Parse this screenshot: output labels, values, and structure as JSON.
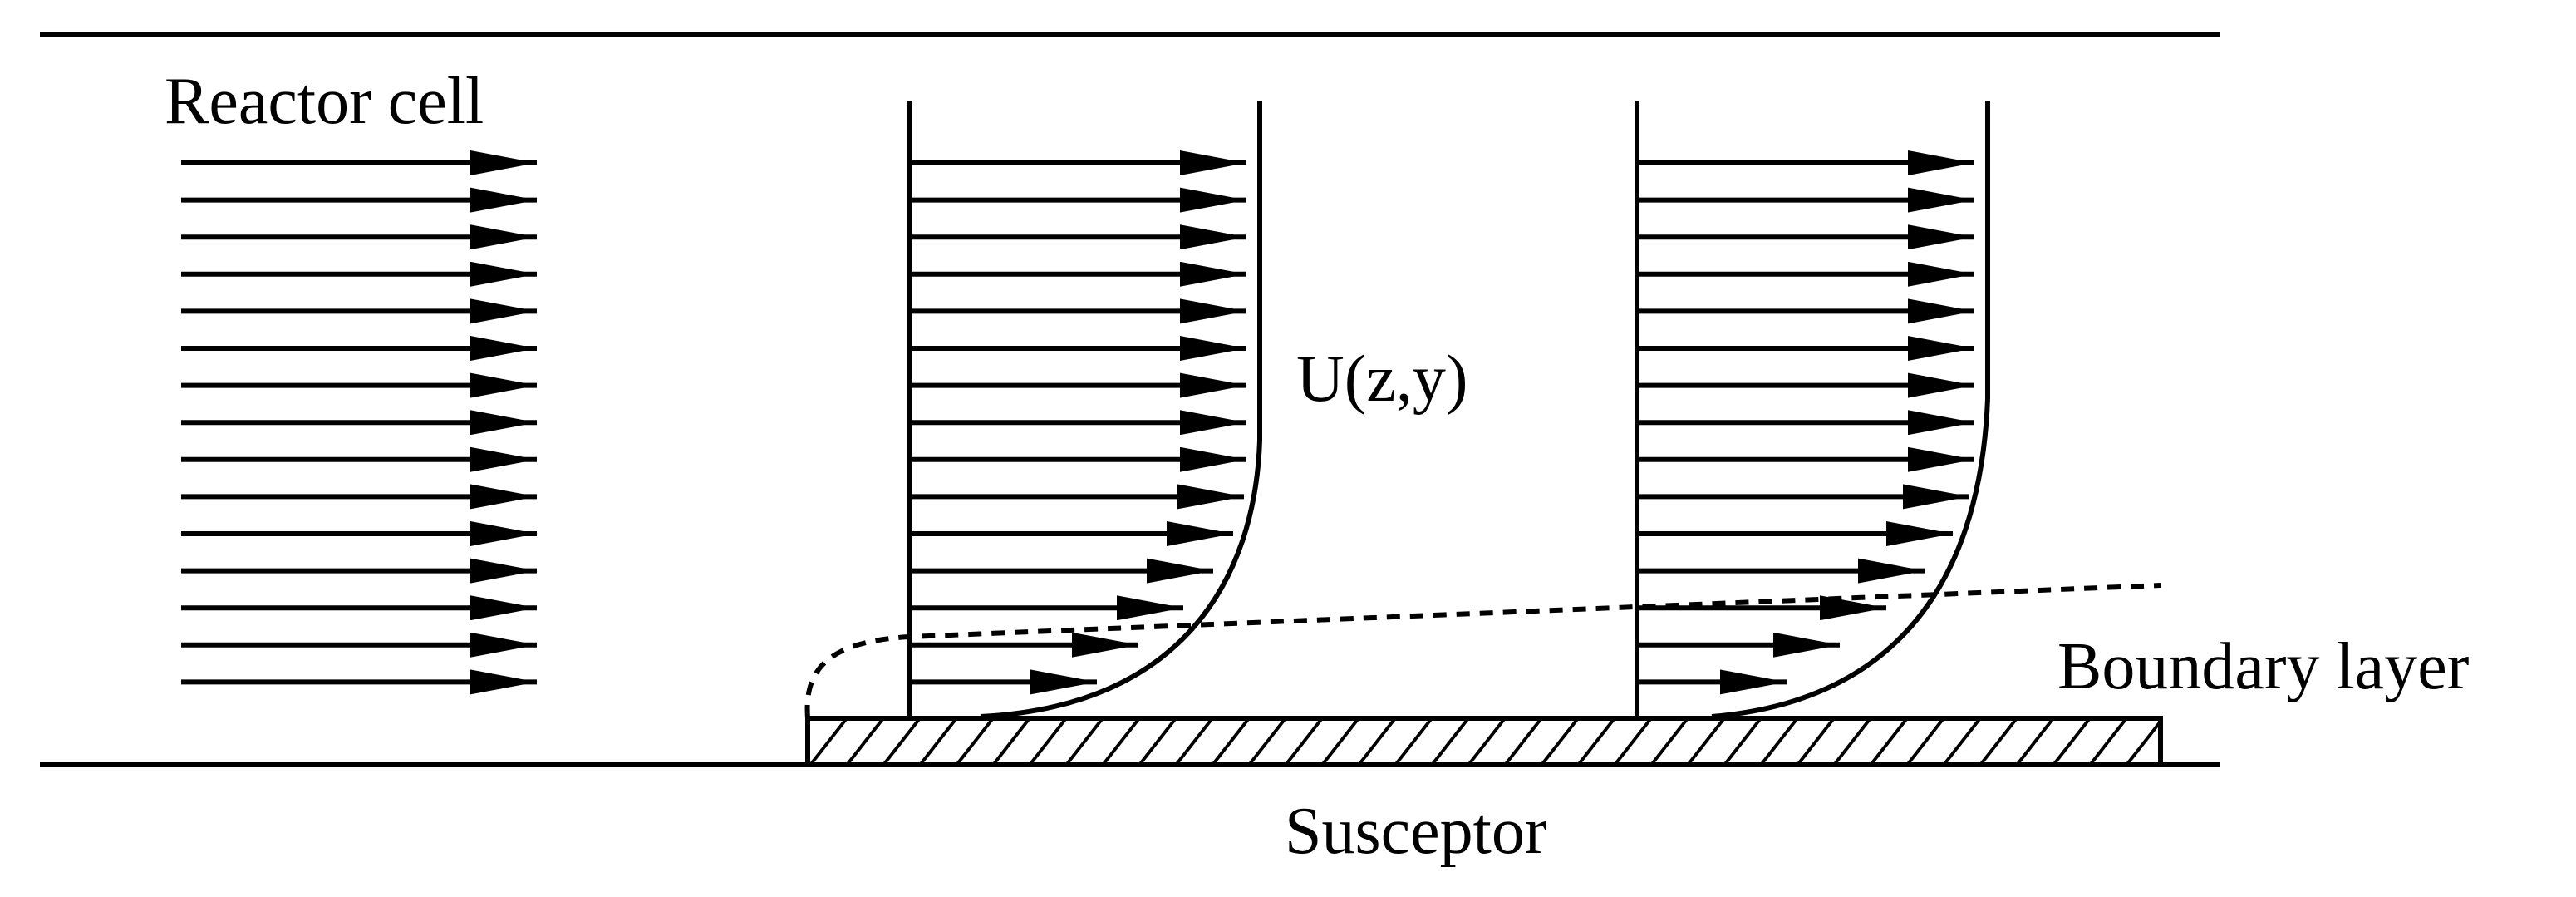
{
  "labels": {
    "reactor_cell": "Reactor cell",
    "velocity_profile": "U(z,y)",
    "boundary_layer": "Boundary layer",
    "susceptor": "Susceptor"
  },
  "colors": {
    "ink": "#000000",
    "background": "#ffffff"
  }
}
